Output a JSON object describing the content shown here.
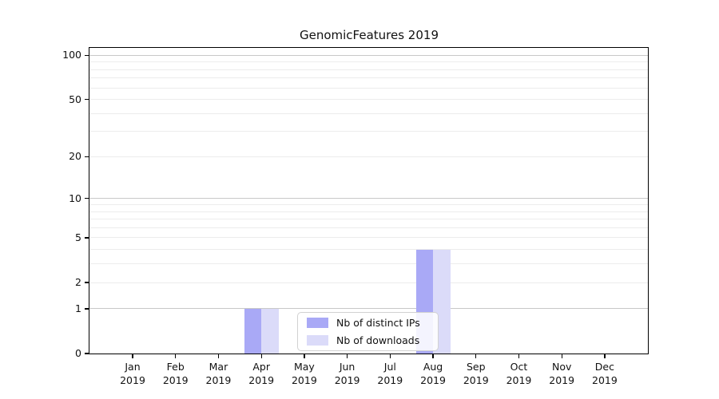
{
  "chart_data": {
    "type": "bar",
    "title": "GenomicFeatures 2019",
    "categories": [
      "Jan",
      "Feb",
      "Mar",
      "Apr",
      "May",
      "Jun",
      "Jul",
      "Aug",
      "Sep",
      "Oct",
      "Nov",
      "Dec"
    ],
    "year_label": "2019",
    "series": [
      {
        "name": "Nb of distinct IPs",
        "color": "#a9a9f6",
        "values": [
          0,
          0,
          0,
          1,
          0,
          0,
          0,
          4,
          0,
          0,
          0,
          0
        ]
      },
      {
        "name": "Nb of downloads",
        "color": "#dbdbf9",
        "values": [
          0,
          0,
          0,
          1,
          0,
          0,
          0,
          4,
          0,
          0,
          0,
          0
        ]
      }
    ],
    "y_axis": {
      "ticks": [
        0,
        1,
        2,
        5,
        10,
        20,
        50,
        100
      ],
      "scale": "log1p",
      "range": [
        0,
        111
      ],
      "major_gridlines": [
        1,
        10,
        100
      ],
      "minor_gridlines": [
        2,
        3,
        4,
        5,
        6,
        7,
        8,
        9,
        20,
        30,
        40,
        50,
        60,
        70,
        80,
        90
      ]
    },
    "xlabel": "",
    "ylabel": "",
    "grid": "horizontal",
    "legend": {
      "position": "inside-bottom-center",
      "entries": [
        "Nb of distinct IPs",
        "Nb of downloads"
      ]
    }
  },
  "colors": {
    "bar_distinct_ips": "#a9a9f6",
    "bar_downloads": "#dbdbf9",
    "grid_major": "#c8c8c8",
    "grid_minor": "#ececec",
    "spine": "#000000",
    "legend_border": "#d2d2d2",
    "text": "#111111",
    "background": "#ffffff"
  }
}
